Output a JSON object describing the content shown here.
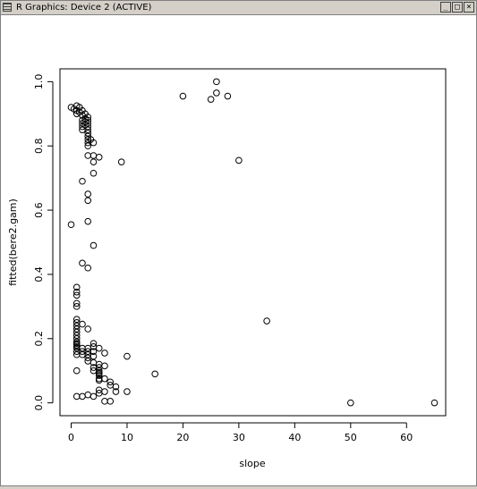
{
  "window": {
    "title": "R Graphics: Device 2 (ACTIVE)",
    "buttons": {
      "minimize": "_",
      "maximize": "□",
      "close": "×"
    }
  },
  "chart_data": {
    "type": "scatter",
    "title": "",
    "xlabel": "slope",
    "ylabel": "fitted(bere2.gam)",
    "xlim": [
      -2,
      67
    ],
    "ylim": [
      -0.04,
      1.04
    ],
    "xticks": [
      0,
      10,
      20,
      30,
      40,
      50,
      60
    ],
    "yticks": [
      0.0,
      0.2,
      0.4,
      0.6,
      0.8,
      1.0
    ],
    "xtick_labels": [
      "0",
      "10",
      "20",
      "30",
      "40",
      "50",
      "60"
    ],
    "ytick_labels": [
      "0.0",
      "0.2",
      "0.4",
      "0.6",
      "0.8",
      "1.0"
    ],
    "grid": false,
    "marker": "open-circle",
    "points": [
      [
        0,
        0.92
      ],
      [
        0.5,
        0.915
      ],
      [
        1,
        0.925
      ],
      [
        1,
        0.91
      ],
      [
        1,
        0.9
      ],
      [
        1.5,
        0.92
      ],
      [
        1.5,
        0.905
      ],
      [
        2,
        0.91
      ],
      [
        2,
        0.895
      ],
      [
        2,
        0.88
      ],
      [
        2,
        0.87
      ],
      [
        2,
        0.86
      ],
      [
        2,
        0.85
      ],
      [
        2.5,
        0.9
      ],
      [
        2.5,
        0.885
      ],
      [
        2.5,
        0.875
      ],
      [
        2.5,
        0.865
      ],
      [
        3,
        0.89
      ],
      [
        3,
        0.88
      ],
      [
        3,
        0.87
      ],
      [
        3,
        0.86
      ],
      [
        3,
        0.85
      ],
      [
        3,
        0.84
      ],
      [
        3,
        0.83
      ],
      [
        3,
        0.82
      ],
      [
        3,
        0.81
      ],
      [
        3,
        0.8
      ],
      [
        3.5,
        0.82
      ],
      [
        4,
        0.81
      ],
      [
        3,
        0.77
      ],
      [
        4,
        0.77
      ],
      [
        4,
        0.75
      ],
      [
        5,
        0.765
      ],
      [
        4,
        0.715
      ],
      [
        9,
        0.75
      ],
      [
        2,
        0.69
      ],
      [
        3,
        0.65
      ],
      [
        3,
        0.63
      ],
      [
        3,
        0.565
      ],
      [
        0,
        0.555
      ],
      [
        4,
        0.49
      ],
      [
        2,
        0.435
      ],
      [
        3,
        0.42
      ],
      [
        1,
        0.36
      ],
      [
        1,
        0.345
      ],
      [
        1,
        0.335
      ],
      [
        1,
        0.31
      ],
      [
        1,
        0.3
      ],
      [
        1,
        0.26
      ],
      [
        1,
        0.25
      ],
      [
        1,
        0.24
      ],
      [
        1,
        0.23
      ],
      [
        1,
        0.22
      ],
      [
        1,
        0.21
      ],
      [
        1,
        0.2
      ],
      [
        1,
        0.19
      ],
      [
        1,
        0.185
      ],
      [
        1,
        0.18
      ],
      [
        1,
        0.175
      ],
      [
        1,
        0.17
      ],
      [
        1,
        0.16
      ],
      [
        1,
        0.15
      ],
      [
        2,
        0.245
      ],
      [
        3,
        0.23
      ],
      [
        2,
        0.17
      ],
      [
        2,
        0.16
      ],
      [
        2,
        0.15
      ],
      [
        3,
        0.17
      ],
      [
        3,
        0.16
      ],
      [
        3,
        0.15
      ],
      [
        3,
        0.14
      ],
      [
        3,
        0.13
      ],
      [
        4,
        0.185
      ],
      [
        4,
        0.175
      ],
      [
        4,
        0.16
      ],
      [
        4,
        0.145
      ],
      [
        4,
        0.125
      ],
      [
        4,
        0.11
      ],
      [
        4,
        0.1
      ],
      [
        5,
        0.17
      ],
      [
        5,
        0.12
      ],
      [
        5,
        0.11
      ],
      [
        5,
        0.1
      ],
      [
        5,
        0.095
      ],
      [
        5,
        0.09
      ],
      [
        5,
        0.085
      ],
      [
        5,
        0.075
      ],
      [
        5,
        0.07
      ],
      [
        6,
        0.155
      ],
      [
        6,
        0.115
      ],
      [
        6,
        0.075
      ],
      [
        7,
        0.065
      ],
      [
        7,
        0.055
      ],
      [
        8,
        0.05
      ],
      [
        6,
        0.035
      ],
      [
        8,
        0.035
      ],
      [
        5,
        0.04
      ],
      [
        5,
        0.03
      ],
      [
        4,
        0.02
      ],
      [
        3,
        0.025
      ],
      [
        2,
        0.02
      ],
      [
        1,
        0.02
      ],
      [
        1,
        0.1
      ],
      [
        6,
        0.005
      ],
      [
        7,
        0.005
      ],
      [
        10,
        0.145
      ],
      [
        10,
        0.035
      ],
      [
        15,
        0.09
      ],
      [
        20,
        0.955
      ],
      [
        25,
        0.945
      ],
      [
        26,
        1.0
      ],
      [
        26,
        0.965
      ],
      [
        28,
        0.955
      ],
      [
        30,
        0.755
      ],
      [
        35,
        0.255
      ],
      [
        50,
        0.0
      ],
      [
        65,
        0.0
      ]
    ]
  }
}
